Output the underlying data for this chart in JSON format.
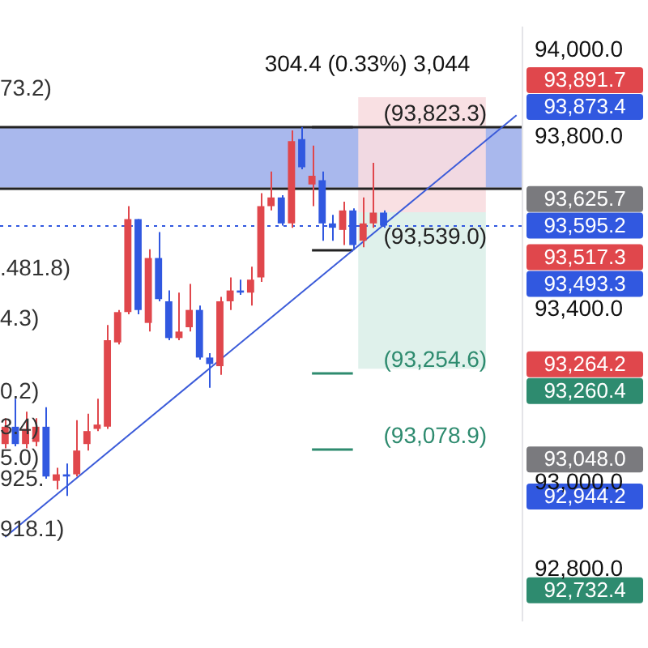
{
  "chart_data": {
    "type": "candlestick",
    "categories": [
      null,
      null,
      null,
      null,
      null,
      null,
      null,
      null,
      null,
      null,
      null,
      null,
      null,
      null,
      null,
      null,
      null,
      null,
      null,
      null,
      null,
      null,
      null,
      null,
      null,
      null,
      null,
      null,
      null,
      null,
      null,
      null,
      null,
      null,
      null,
      null,
      null,
      null,
      null,
      null,
      null,
      null,
      null,
      null,
      null,
      null,
      null,
      null,
      null,
      null,
      null
    ],
    "ohlc": [
      [
        93090,
        93150,
        93080,
        93130
      ],
      [
        93130,
        93195,
        93085,
        93090
      ],
      [
        93090,
        93165,
        93080,
        93125
      ],
      [
        93095,
        93150,
        93085,
        93130
      ],
      [
        93130,
        93175,
        93010,
        93015
      ],
      [
        93005,
        93035,
        92985,
        93020
      ],
      [
        93020,
        93045,
        92970,
        93015
      ],
      [
        93020,
        93145,
        93015,
        93075
      ],
      [
        93090,
        93160,
        93075,
        93120
      ],
      [
        93125,
        93195,
        93120,
        93135
      ],
      [
        93130,
        93365,
        93125,
        93330
      ],
      [
        93325,
        93400,
        93320,
        93395
      ],
      [
        93395,
        93640,
        93390,
        93610
      ],
      [
        93610,
        93610,
        93390,
        93400
      ],
      [
        93370,
        93540,
        93350,
        93520
      ],
      [
        93520,
        93580,
        93420,
        93425
      ],
      [
        93420,
        93445,
        93330,
        93335
      ],
      [
        93335,
        93440,
        93330,
        93350
      ],
      [
        93360,
        93460,
        93350,
        93400
      ],
      [
        93400,
        93410,
        93285,
        93290
      ],
      [
        93290,
        93300,
        93220,
        93275
      ],
      [
        93270,
        93430,
        93250,
        93420
      ],
      [
        93420,
        93475,
        93400,
        93445
      ],
      [
        93445,
        93470,
        93435,
        93440
      ],
      [
        93440,
        93500,
        93410,
        93470
      ],
      [
        93475,
        93670,
        93465,
        93640
      ],
      [
        93640,
        93720,
        93630,
        93660
      ],
      [
        93660,
        93665,
        93595,
        93600
      ],
      [
        93600,
        93815,
        93590,
        93790
      ],
      [
        93795,
        93823,
        93725,
        93730
      ],
      [
        93690,
        93780,
        93640,
        93710
      ],
      [
        93700,
        93720,
        93560,
        93600
      ],
      [
        93600,
        93620,
        93560,
        93590
      ],
      [
        93585,
        93650,
        93550,
        93630
      ],
      [
        93630,
        93635,
        93539,
        93550
      ],
      [
        93560,
        93660,
        93545,
        93600
      ],
      [
        93600,
        93740,
        93590,
        93625
      ],
      [
        93625,
        93630,
        93590,
        93595
      ],
      null,
      null,
      null,
      null,
      null,
      null,
      null,
      null,
      null,
      null,
      null,
      null,
      null
    ],
    "colors": [
      "#e0474c",
      "#3158e0",
      "#e0474c",
      "#e0474c",
      "#3158e0",
      "#e0474c",
      "#3158e0",
      "#e0474c",
      "#e0474c",
      "#e0474c",
      "#e0474c",
      "#e0474c",
      "#e0474c",
      "#3158e0",
      "#e0474c",
      "#3158e0",
      "#3158e0",
      "#e0474c",
      "#e0474c",
      "#3158e0",
      "#3158e0",
      "#e0474c",
      "#e0474c",
      "#3158e0",
      "#e0474c",
      "#e0474c",
      "#e0474c",
      "#3158e0",
      "#e0474c",
      "#3158e0",
      "#e0474c",
      "#3158e0",
      "#3158e0",
      "#e0474c",
      "#3158e0",
      "#e0474c",
      "#e0474c",
      "#3158e0",
      null,
      null,
      null,
      null,
      null,
      null,
      null,
      null,
      null,
      null,
      null,
      null,
      null
    ],
    "series": [
      {
        "type": "line",
        "color": "#3b5bd9",
        "values": [
          92875,
          null,
          null,
          null,
          null,
          null,
          null,
          null,
          null,
          null,
          null,
          null,
          null,
          null,
          null,
          null,
          null,
          null,
          null,
          null,
          null,
          null,
          null,
          null,
          null,
          null,
          null,
          null,
          null,
          null,
          null,
          null,
          null,
          null,
          null,
          null,
          null,
          null,
          null,
          null,
          null,
          null,
          null,
          null,
          null,
          null,
          null,
          null,
          null,
          null,
          93850
        ]
      }
    ],
    "ylim": [
      92680,
      94055
    ],
    "yticks": [
      {
        "value": 92800,
        "label": "92,800.0"
      },
      {
        "value": 93000,
        "label": "93,000.0"
      },
      {
        "value": 93400,
        "label": "93,400.0"
      },
      {
        "value": 93800,
        "label": "93,800.0"
      },
      {
        "value": 94000,
        "label": "94,000.0"
      }
    ],
    "bands": [
      {
        "axis": "y",
        "from": 93683,
        "to": 93823.3,
        "color": "#9aabea"
      },
      {
        "axis": "y",
        "from": 93625.7,
        "to": 93891.7,
        "color": "#f8dde0"
      },
      {
        "axis": "y",
        "from": 93264.2,
        "to": 93625.7,
        "color": "#dcefe9"
      }
    ],
    "ref_lines": [
      {
        "axis": "y",
        "value": 93595.2,
        "label": "93,595.2",
        "color": "#3158e0",
        "line_style": "dotted"
      },
      {
        "axis": "y",
        "value": 93823.3,
        "color": "#222222",
        "line_style": "solid"
      },
      {
        "axis": "y",
        "value": 93683,
        "color": "#222222",
        "line_style": "solid"
      },
      {
        "axis": "y",
        "value": 93823.3,
        "label": "(93,823.3)",
        "color": "#222222",
        "line_style": "solid"
      },
      {
        "axis": "y",
        "value": 93539.0,
        "label": "(93,539.0)",
        "color": "#222222",
        "line_style": "solid"
      },
      {
        "axis": "y",
        "value": 93254.6,
        "label": "(93,254.6)",
        "color": "#2e8b6f",
        "line_style": "solid"
      },
      {
        "axis": "y",
        "value": 93078.9,
        "label": "(93,078.9)",
        "color": "#2e8b6f",
        "line_style": "solid"
      }
    ],
    "annotations": [
      "304.4 (0.33%) 3,044",
      "73.2)",
      ".481.8)",
      "4.3)",
      "0.2)",
      "3.4)",
      "5.0)",
      "925.",
      "918.1)",
      "93,891.7",
      "93,873.4",
      "93,625.7",
      "93,517.3",
      "93,493.3",
      "93,264.2",
      "93,260.4",
      "93,048.0",
      "92,944.2",
      "92,732.4"
    ]
  }
}
